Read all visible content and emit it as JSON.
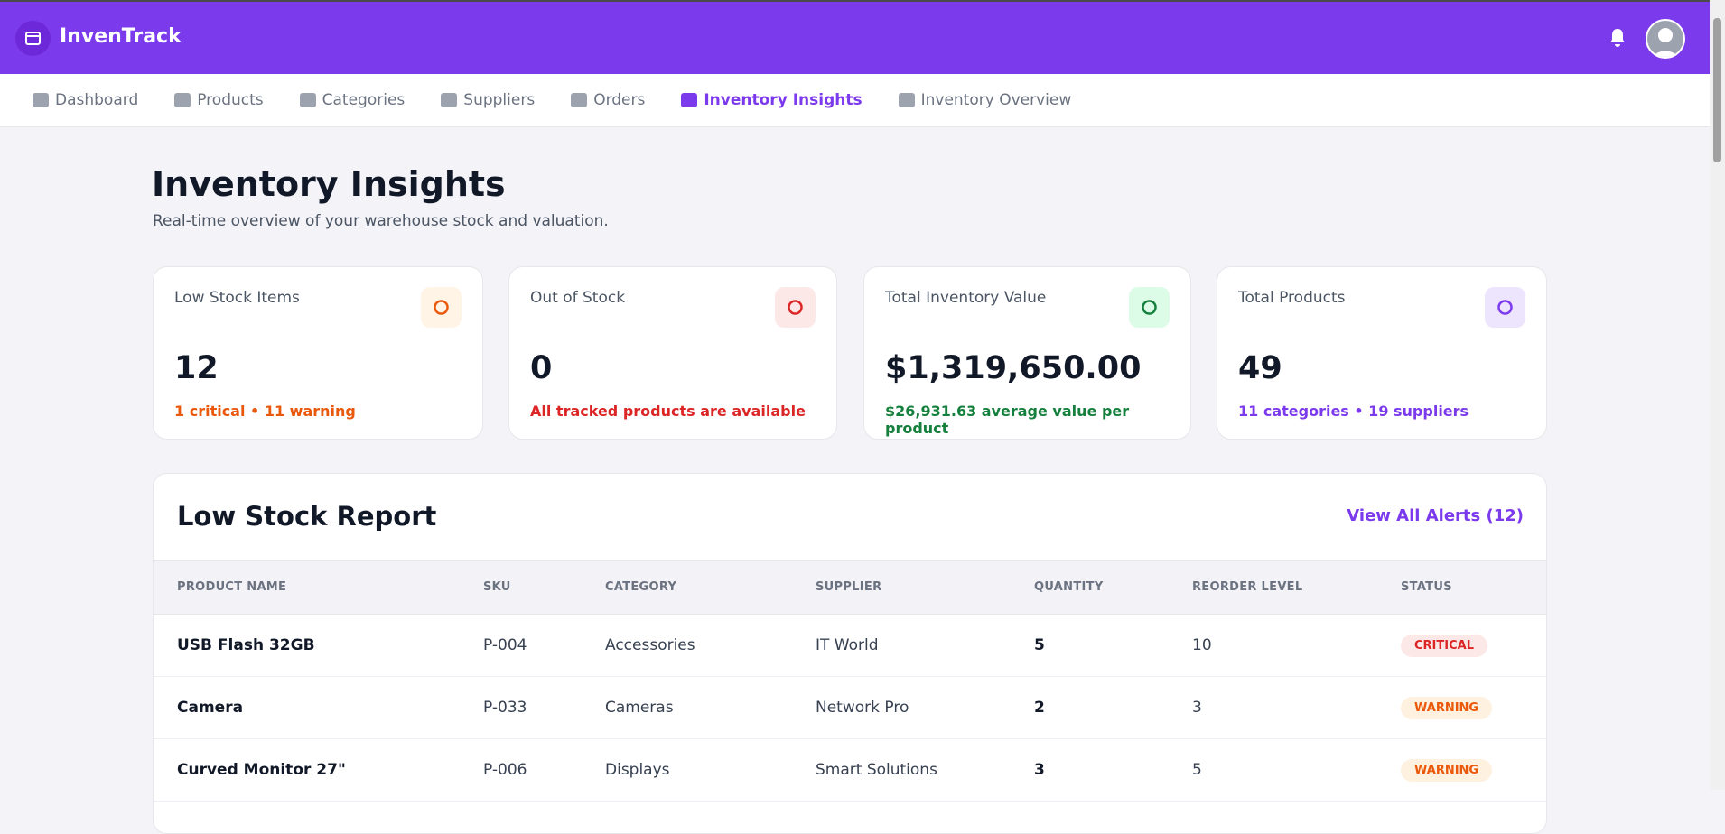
{
  "header": {
    "brand": "InvenTrack"
  },
  "nav": [
    "Dashboard",
    "Products",
    "Categories",
    "Suppliers",
    "Orders",
    "Inventory Insights",
    "Inventory Overview"
  ],
  "page": {
    "title": "Inventory Insights",
    "subtitle": "Real-time overview of your warehouse stock and valuation."
  },
  "cards": [
    {
      "label": "Low Stock Items",
      "value": "12",
      "note": "1 critical • 11 warning"
    },
    {
      "label": "Out of Stock",
      "value": "0",
      "note": "All tracked products are available"
    },
    {
      "label": "Total Inventory Value",
      "value": "$1,319,650.00",
      "note": "$26,931.63 average value per product"
    },
    {
      "label": "Total Products",
      "value": "49",
      "note": "11 categories • 19 suppliers"
    }
  ],
  "report": {
    "title": "Low Stock Report",
    "link": "View All Alerts (12)",
    "columns": [
      "PRODUCT NAME",
      "SKU",
      "CATEGORY",
      "SUPPLIER",
      "QUANTITY",
      "REORDER LEVEL",
      "STATUS"
    ],
    "rows": [
      [
        "USB Flash 32GB",
        "P-004",
        "Accessories",
        "IT World",
        "5",
        "10",
        "CRITICAL"
      ],
      [
        "Camera",
        "P-033",
        "Cameras",
        "Network Pro",
        "2",
        "3",
        "WARNING"
      ],
      [
        "Curved Monitor 27\"",
        "P-006",
        "Displays",
        "Smart Solutions",
        "3",
        "5",
        "WARNING"
      ]
    ]
  }
}
